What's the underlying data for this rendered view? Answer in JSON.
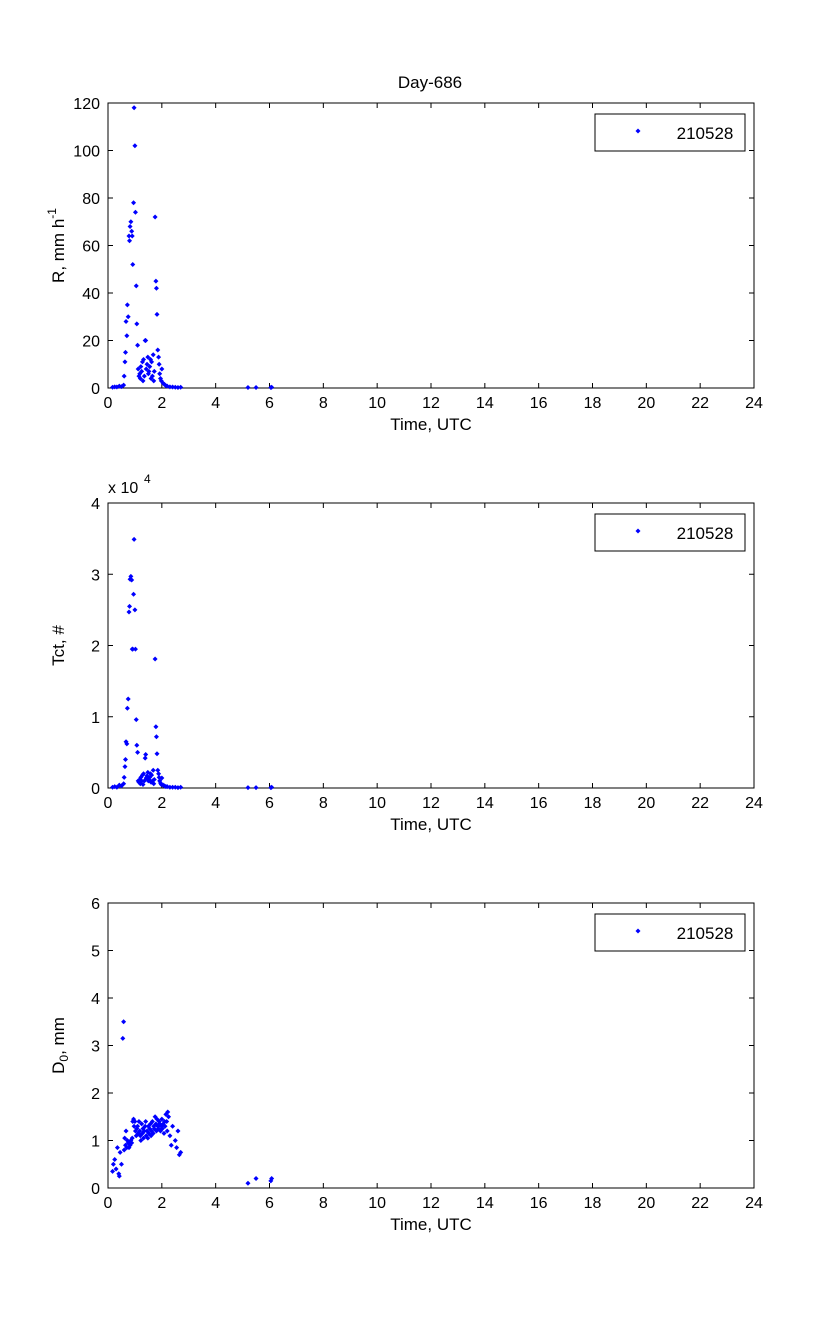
{
  "figure": {
    "title": "Day-686",
    "background": "#ffffff",
    "marker_color": "#0000ff"
  },
  "chart_data": [
    {
      "type": "scatter",
      "title": "Day-686",
      "xlabel": "Time, UTC",
      "ylabel": "R, mm h",
      "ylabel_superscript": "-1",
      "xlim": [
        0,
        24
      ],
      "ylim": [
        0,
        120
      ],
      "xticks": [
        0,
        2,
        4,
        6,
        8,
        10,
        12,
        14,
        16,
        18,
        20,
        22,
        24
      ],
      "yticks": [
        0,
        20,
        40,
        60,
        80,
        100,
        120
      ],
      "tick_exponent": "",
      "legend": {
        "label": "210528",
        "placement": "top-right"
      },
      "series": [
        {
          "name": "210528",
          "points": [
            [
              0.17,
              0.3
            ],
            [
              0.25,
              0.5
            ],
            [
              0.33,
              0.4
            ],
            [
              0.42,
              0.8
            ],
            [
              0.5,
              0.6
            ],
            [
              0.58,
              1.2
            ],
            [
              0.6,
              5
            ],
            [
              0.63,
              11
            ],
            [
              0.65,
              15
            ],
            [
              0.67,
              28
            ],
            [
              0.7,
              22
            ],
            [
              0.72,
              35
            ],
            [
              0.75,
              30
            ],
            [
              0.78,
              64
            ],
            [
              0.8,
              62
            ],
            [
              0.82,
              68
            ],
            [
              0.85,
              70
            ],
            [
              0.88,
              66
            ],
            [
              0.9,
              64
            ],
            [
              0.92,
              52
            ],
            [
              0.95,
              78
            ],
            [
              0.97,
              118
            ],
            [
              1.0,
              102
            ],
            [
              1.02,
              74
            ],
            [
              1.05,
              43
            ],
            [
              1.07,
              27
            ],
            [
              1.1,
              18
            ],
            [
              1.12,
              8
            ],
            [
              1.15,
              5
            ],
            [
              1.18,
              6
            ],
            [
              1.2,
              4
            ],
            [
              1.22,
              9
            ],
            [
              1.25,
              7
            ],
            [
              1.28,
              11
            ],
            [
              1.3,
              3
            ],
            [
              1.32,
              12
            ],
            [
              1.35,
              5
            ],
            [
              1.38,
              20
            ],
            [
              1.4,
              20
            ],
            [
              1.42,
              8
            ],
            [
              1.45,
              10
            ],
            [
              1.48,
              13
            ],
            [
              1.5,
              6
            ],
            [
              1.52,
              7
            ],
            [
              1.55,
              9
            ],
            [
              1.58,
              12
            ],
            [
              1.6,
              4
            ],
            [
              1.62,
              11
            ],
            [
              1.65,
              5
            ],
            [
              1.68,
              14
            ],
            [
              1.7,
              3
            ],
            [
              1.72,
              7
            ],
            [
              1.75,
              72
            ],
            [
              1.78,
              45
            ],
            [
              1.8,
              42
            ],
            [
              1.82,
              31
            ],
            [
              1.85,
              16
            ],
            [
              1.88,
              13
            ],
            [
              1.9,
              10
            ],
            [
              1.92,
              6
            ],
            [
              1.95,
              4
            ],
            [
              1.98,
              3
            ],
            [
              2.0,
              8
            ],
            [
              2.05,
              2
            ],
            [
              2.1,
              1.5
            ],
            [
              2.15,
              1.0
            ],
            [
              2.2,
              0.8
            ],
            [
              2.3,
              0.5
            ],
            [
              2.4,
              0.4
            ],
            [
              2.5,
              0.3
            ],
            [
              2.6,
              0.2
            ],
            [
              2.7,
              0.3
            ],
            [
              5.2,
              0.2
            ],
            [
              5.5,
              0.2
            ],
            [
              6.05,
              0.2
            ],
            [
              6.08,
              0.3
            ]
          ]
        }
      ]
    },
    {
      "type": "scatter",
      "title": "",
      "xlabel": "Time, UTC",
      "ylabel": "Tct, #",
      "ylabel_superscript": "",
      "xlim": [
        0,
        24
      ],
      "ylim": [
        0,
        4
      ],
      "xticks": [
        0,
        2,
        4,
        6,
        8,
        10,
        12,
        14,
        16,
        18,
        20,
        22,
        24
      ],
      "yticks": [
        0,
        1,
        2,
        3,
        4
      ],
      "tick_exponent": "x 10",
      "tick_exponent_power": "4",
      "legend": {
        "label": "210528",
        "placement": "top-right"
      },
      "series": [
        {
          "name": "210528",
          "points": [
            [
              0.17,
              0.01
            ],
            [
              0.25,
              0.02
            ],
            [
              0.33,
              0.01
            ],
            [
              0.42,
              0.04
            ],
            [
              0.5,
              0.03
            ],
            [
              0.58,
              0.06
            ],
            [
              0.6,
              0.15
            ],
            [
              0.63,
              0.3
            ],
            [
              0.65,
              0.4
            ],
            [
              0.67,
              0.65
            ],
            [
              0.7,
              0.62
            ],
            [
              0.72,
              1.12
            ],
            [
              0.75,
              1.25
            ],
            [
              0.78,
              2.47
            ],
            [
              0.8,
              2.55
            ],
            [
              0.82,
              2.93
            ],
            [
              0.85,
              2.97
            ],
            [
              0.88,
              2.92
            ],
            [
              0.9,
              1.95
            ],
            [
              0.92,
              1.95
            ],
            [
              0.95,
              2.72
            ],
            [
              0.97,
              3.49
            ],
            [
              1.0,
              2.5
            ],
            [
              1.02,
              1.95
            ],
            [
              1.05,
              0.96
            ],
            [
              1.07,
              0.6
            ],
            [
              1.1,
              0.5
            ],
            [
              1.12,
              0.1
            ],
            [
              1.15,
              0.08
            ],
            [
              1.18,
              0.12
            ],
            [
              1.2,
              0.06
            ],
            [
              1.22,
              0.15
            ],
            [
              1.25,
              0.1
            ],
            [
              1.28,
              0.18
            ],
            [
              1.3,
              0.05
            ],
            [
              1.32,
              0.2
            ],
            [
              1.35,
              0.1
            ],
            [
              1.38,
              0.42
            ],
            [
              1.4,
              0.47
            ],
            [
              1.42,
              0.14
            ],
            [
              1.45,
              0.17
            ],
            [
              1.48,
              0.22
            ],
            [
              1.5,
              0.1
            ],
            [
              1.52,
              0.12
            ],
            [
              1.55,
              0.15
            ],
            [
              1.58,
              0.2
            ],
            [
              1.6,
              0.08
            ],
            [
              1.62,
              0.18
            ],
            [
              1.65,
              0.1
            ],
            [
              1.68,
              0.25
            ],
            [
              1.7,
              0.06
            ],
            [
              1.72,
              0.12
            ],
            [
              1.75,
              1.81
            ],
            [
              1.78,
              0.86
            ],
            [
              1.8,
              0.72
            ],
            [
              1.82,
              0.48
            ],
            [
              1.85,
              0.25
            ],
            [
              1.88,
              0.2
            ],
            [
              1.9,
              0.15
            ],
            [
              1.92,
              0.1
            ],
            [
              1.95,
              0.07
            ],
            [
              1.98,
              0.05
            ],
            [
              2.0,
              0.14
            ],
            [
              2.05,
              0.04
            ],
            [
              2.1,
              0.03
            ],
            [
              2.15,
              0.02
            ],
            [
              2.2,
              0.02
            ],
            [
              2.3,
              0.01
            ],
            [
              2.4,
              0.01
            ],
            [
              2.5,
              0.01
            ],
            [
              2.6,
              0.005
            ],
            [
              2.7,
              0.01
            ],
            [
              5.2,
              0.005
            ],
            [
              5.5,
              0.005
            ],
            [
              6.05,
              0.005
            ],
            [
              6.08,
              0.01
            ]
          ]
        }
      ]
    },
    {
      "type": "scatter",
      "title": "",
      "xlabel": "Time, UTC",
      "ylabel": "D",
      "ylabel_subscript": "0",
      "ylabel_suffix": ", mm",
      "xlim": [
        0,
        24
      ],
      "ylim": [
        0,
        6
      ],
      "xticks": [
        0,
        2,
        4,
        6,
        8,
        10,
        12,
        14,
        16,
        18,
        20,
        22,
        24
      ],
      "yticks": [
        0,
        1,
        2,
        3,
        4,
        5,
        6
      ],
      "tick_exponent": "",
      "legend": {
        "label": "210528",
        "placement": "top-right"
      },
      "series": [
        {
          "name": "210528",
          "points": [
            [
              0.17,
              0.35
            ],
            [
              0.2,
              0.5
            ],
            [
              0.25,
              0.6
            ],
            [
              0.3,
              0.4
            ],
            [
              0.35,
              0.85
            ],
            [
              0.4,
              0.3
            ],
            [
              0.42,
              0.25
            ],
            [
              0.45,
              0.75
            ],
            [
              0.5,
              0.5
            ],
            [
              0.55,
              3.15
            ],
            [
              0.58,
              3.5
            ],
            [
              0.6,
              0.8
            ],
            [
              0.62,
              1.05
            ],
            [
              0.65,
              0.9
            ],
            [
              0.67,
              1.2
            ],
            [
              0.7,
              0.85
            ],
            [
              0.72,
              1.0
            ],
            [
              0.75,
              0.95
            ],
            [
              0.78,
              0.85
            ],
            [
              0.8,
              0.95
            ],
            [
              0.82,
              0.9
            ],
            [
              0.85,
              1.0
            ],
            [
              0.88,
              0.95
            ],
            [
              0.9,
              1.05
            ],
            [
              0.92,
              1.4
            ],
            [
              0.95,
              1.45
            ],
            [
              0.97,
              1.3
            ],
            [
              1.0,
              1.4
            ],
            [
              1.02,
              1.2
            ],
            [
              1.05,
              1.1
            ],
            [
              1.07,
              1.25
            ],
            [
              1.1,
              1.3
            ],
            [
              1.12,
              1.15
            ],
            [
              1.15,
              1.4
            ],
            [
              1.18,
              1.2
            ],
            [
              1.2,
              1.1
            ],
            [
              1.22,
              1.0
            ],
            [
              1.25,
              1.35
            ],
            [
              1.28,
              1.15
            ],
            [
              1.3,
              1.25
            ],
            [
              1.32,
              1.05
            ],
            [
              1.35,
              1.2
            ],
            [
              1.38,
              1.3
            ],
            [
              1.4,
              1.4
            ],
            [
              1.42,
              1.1
            ],
            [
              1.45,
              1.2
            ],
            [
              1.48,
              1.05
            ],
            [
              1.5,
              1.3
            ],
            [
              1.52,
              1.15
            ],
            [
              1.55,
              1.25
            ],
            [
              1.58,
              1.35
            ],
            [
              1.6,
              1.1
            ],
            [
              1.62,
              1.2
            ],
            [
              1.65,
              1.4
            ],
            [
              1.68,
              1.15
            ],
            [
              1.7,
              1.3
            ],
            [
              1.72,
              1.25
            ],
            [
              1.75,
              1.5
            ],
            [
              1.78,
              1.35
            ],
            [
              1.8,
              1.2
            ],
            [
              1.82,
              1.45
            ],
            [
              1.85,
              1.3
            ],
            [
              1.88,
              1.25
            ],
            [
              1.9,
              1.4
            ],
            [
              1.92,
              1.35
            ],
            [
              1.95,
              1.2
            ],
            [
              1.98,
              1.3
            ],
            [
              2.0,
              1.45
            ],
            [
              2.02,
              1.25
            ],
            [
              2.05,
              1.35
            ],
            [
              2.08,
              1.15
            ],
            [
              2.1,
              1.4
            ],
            [
              2.12,
              1.3
            ],
            [
              2.15,
              1.55
            ],
            [
              2.18,
              1.4
            ],
            [
              2.2,
              1.2
            ],
            [
              2.22,
              1.6
            ],
            [
              2.25,
              1.5
            ],
            [
              2.3,
              1.1
            ],
            [
              2.35,
              0.9
            ],
            [
              2.4,
              1.3
            ],
            [
              2.5,
              1.0
            ],
            [
              2.55,
              0.85
            ],
            [
              2.6,
              1.2
            ],
            [
              2.65,
              0.7
            ],
            [
              2.7,
              0.75
            ],
            [
              5.2,
              0.1
            ],
            [
              5.5,
              0.2
            ],
            [
              6.05,
              0.15
            ],
            [
              6.08,
              0.2
            ]
          ]
        }
      ]
    }
  ]
}
